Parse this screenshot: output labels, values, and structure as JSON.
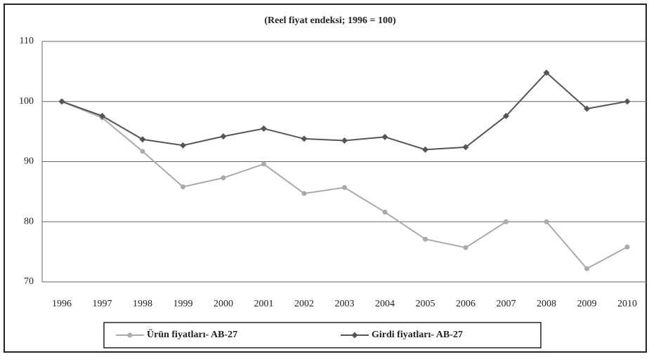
{
  "chart_data": {
    "type": "line",
    "title": "(Reel fiyat endeksi; 1996 = 100)",
    "categories": [
      "1996",
      "1997",
      "1998",
      "1999",
      "2000",
      "2001",
      "2002",
      "2003",
      "2004",
      "2005",
      "2006",
      "2007",
      "2008",
      "2009",
      "2010"
    ],
    "series": [
      {
        "name": "Ürün fiyatları- AB-27",
        "color": "#aaaaaa",
        "values": [
          100,
          97.3,
          91.7,
          85.8,
          87.3,
          89.6,
          84.7,
          85.7,
          81.6,
          77.1,
          75.7,
          80.0,
          80.0,
          72.2,
          75.8
        ]
      },
      {
        "name": "Girdi fiyatları- AB-27",
        "color": "#555555",
        "values": [
          100,
          97.6,
          93.7,
          92.7,
          94.2,
          95.5,
          93.8,
          93.5,
          94.1,
          92.0,
          92.4,
          97.6,
          104.8,
          98.8,
          100
        ]
      }
    ],
    "ylim": [
      70,
      110
    ],
    "yticks": [
      70,
      80,
      90,
      100,
      110
    ],
    "grid": true,
    "legend": "bottom"
  }
}
